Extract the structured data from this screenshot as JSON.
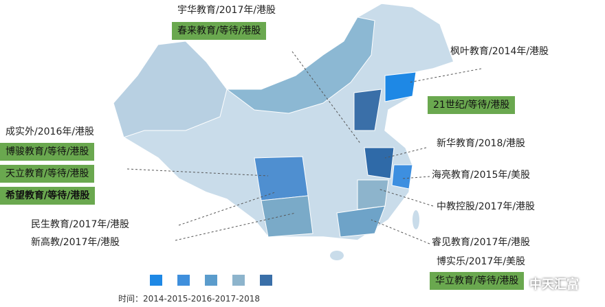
{
  "labels": [
    "宇华教育/2017年/港股",
    "枫叶教育/2014年/港股",
    "成实外/2016年/港股",
    "新华教育/2018/港股",
    "海亮教育/2015年/美股",
    "中教控股/2017年/港股",
    "民生教育/2017年/港股",
    "新高教/2017年/港股",
    "睿见教育/2017年/港股",
    "博实乐/2017年/美股"
  ],
  "highlighted_labels": [
    "春来教育/等待/港股",
    "21世纪/等待/港股",
    "博骏教育/等待/港股",
    "天立教育/等待/港股",
    "希望教育/等待/港股",
    "华立教育/等待/港股"
  ],
  "legend": {
    "colors": [
      "#1e88e5",
      "#3f8fdc",
      "#5b9ccc",
      "#8db4cc",
      "#3a6fa8"
    ],
    "caption": "时间：2014-2015-2016-2017-2018"
  },
  "watermark": "中天汇富"
}
